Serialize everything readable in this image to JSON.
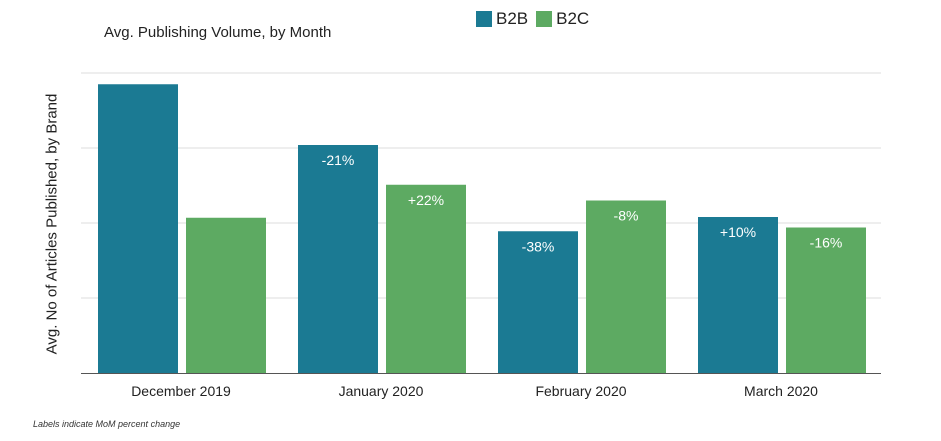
{
  "chart_data": {
    "type": "bar",
    "title": "Avg. Publishing Volume, by Month",
    "xlabel": "",
    "ylabel": "Avg. No of Articles Published, by Brand",
    "categories": [
      "December 2019",
      "January 2020",
      "February 2020",
      "March 2020"
    ],
    "ylim": [
      0,
      4
    ],
    "grid": true,
    "legend_position": "top",
    "series": [
      {
        "name": "B2B",
        "color": "#1b7a93",
        "values": [
          3.85,
          3.04,
          1.89,
          2.08
        ],
        "labels": [
          "",
          "-21%",
          "-38%",
          "+10%"
        ]
      },
      {
        "name": "B2C",
        "color": "#5daa62",
        "values": [
          2.07,
          2.51,
          2.3,
          1.94
        ],
        "labels": [
          "",
          "+22%",
          "-8%",
          "-16%"
        ]
      }
    ],
    "footnote": "Labels indicate MoM percent change"
  }
}
